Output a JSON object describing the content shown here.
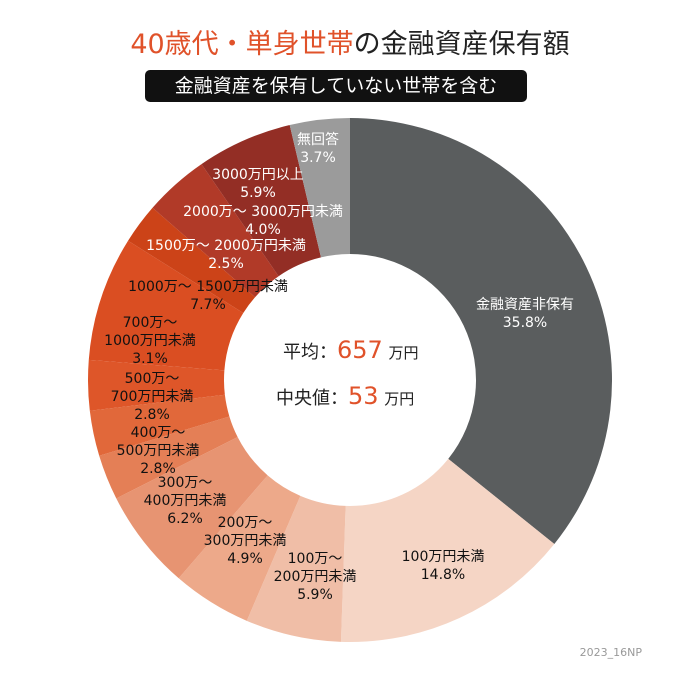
{
  "title": {
    "highlight": "40歳代・単身世帯",
    "rest": "の金融資産保有額"
  },
  "subtitle": "金融資産を保有していない世帯を含む",
  "center": {
    "mean_label": "平均：",
    "mean_value": "657",
    "mean_unit": "万円",
    "median_label": "中央値：",
    "median_value": "53",
    "median_unit": "万円"
  },
  "footer": "2023_16NP",
  "chart_data": {
    "type": "pie",
    "donut": true,
    "start": "top",
    "direction": "clockwise",
    "slices": [
      {
        "label": "金融資産非保有",
        "lines": [
          "金融資産非保有"
        ],
        "value": 35.8,
        "value_label": "35.8%",
        "color": "#5a5d5e"
      },
      {
        "label": "100万円未満",
        "lines": [
          "100万円未満"
        ],
        "value": 14.8,
        "value_label": "14.8%",
        "color": "#f5d5c5"
      },
      {
        "label": "100万〜200万円未満",
        "lines": [
          "100万〜",
          "200万円未満"
        ],
        "value": 5.9,
        "value_label": "5.9%",
        "color": "#f0bea7"
      },
      {
        "label": "200万〜300万円未満",
        "lines": [
          "200万〜",
          "300万円未満"
        ],
        "value": 4.9,
        "value_label": "4.9%",
        "color": "#eda98a"
      },
      {
        "label": "300万〜400万円未満",
        "lines": [
          "300万〜",
          "400万円未満"
        ],
        "value": 6.2,
        "value_label": "6.2%",
        "color": "#e79472"
      },
      {
        "label": "400万〜500万円未満",
        "lines": [
          "400万〜",
          "500万円未満"
        ],
        "value": 2.8,
        "value_label": "2.8%",
        "color": "#e47f56"
      },
      {
        "label": "500万〜700万円未満",
        "lines": [
          "500万〜",
          "700万円未満"
        ],
        "value": 2.8,
        "value_label": "2.8%",
        "color": "#e1683a"
      },
      {
        "label": "700万〜1000万円未満",
        "lines": [
          "700万〜",
          "1000万円未満"
        ],
        "value": 3.1,
        "value_label": "3.1%",
        "color": "#de5629"
      },
      {
        "label": "1000万〜1500万円未満",
        "lines": [
          "1000万〜 1500万円未満"
        ],
        "value": 7.7,
        "value_label": "7.7%",
        "color": "#da4e22"
      },
      {
        "label": "1500万〜2000万円未満",
        "lines": [
          "1500万〜 2000万円未満"
        ],
        "value": 2.5,
        "value_label": "2.5%",
        "color": "#cc4318"
      },
      {
        "label": "2000万〜3000万円未満",
        "lines": [
          "2000万〜 3000万円未満"
        ],
        "value": 4.0,
        "value_label": "4.0%",
        "color": "#b13a28"
      },
      {
        "label": "3000万円以上",
        "lines": [
          "3000万円以上"
        ],
        "value": 5.9,
        "value_label": "5.9%",
        "color": "#932e25"
      },
      {
        "label": "無回答",
        "lines": [
          "無回答"
        ],
        "value": 3.7,
        "value_label": "3.7%",
        "color": "#9b9b9b"
      }
    ]
  }
}
